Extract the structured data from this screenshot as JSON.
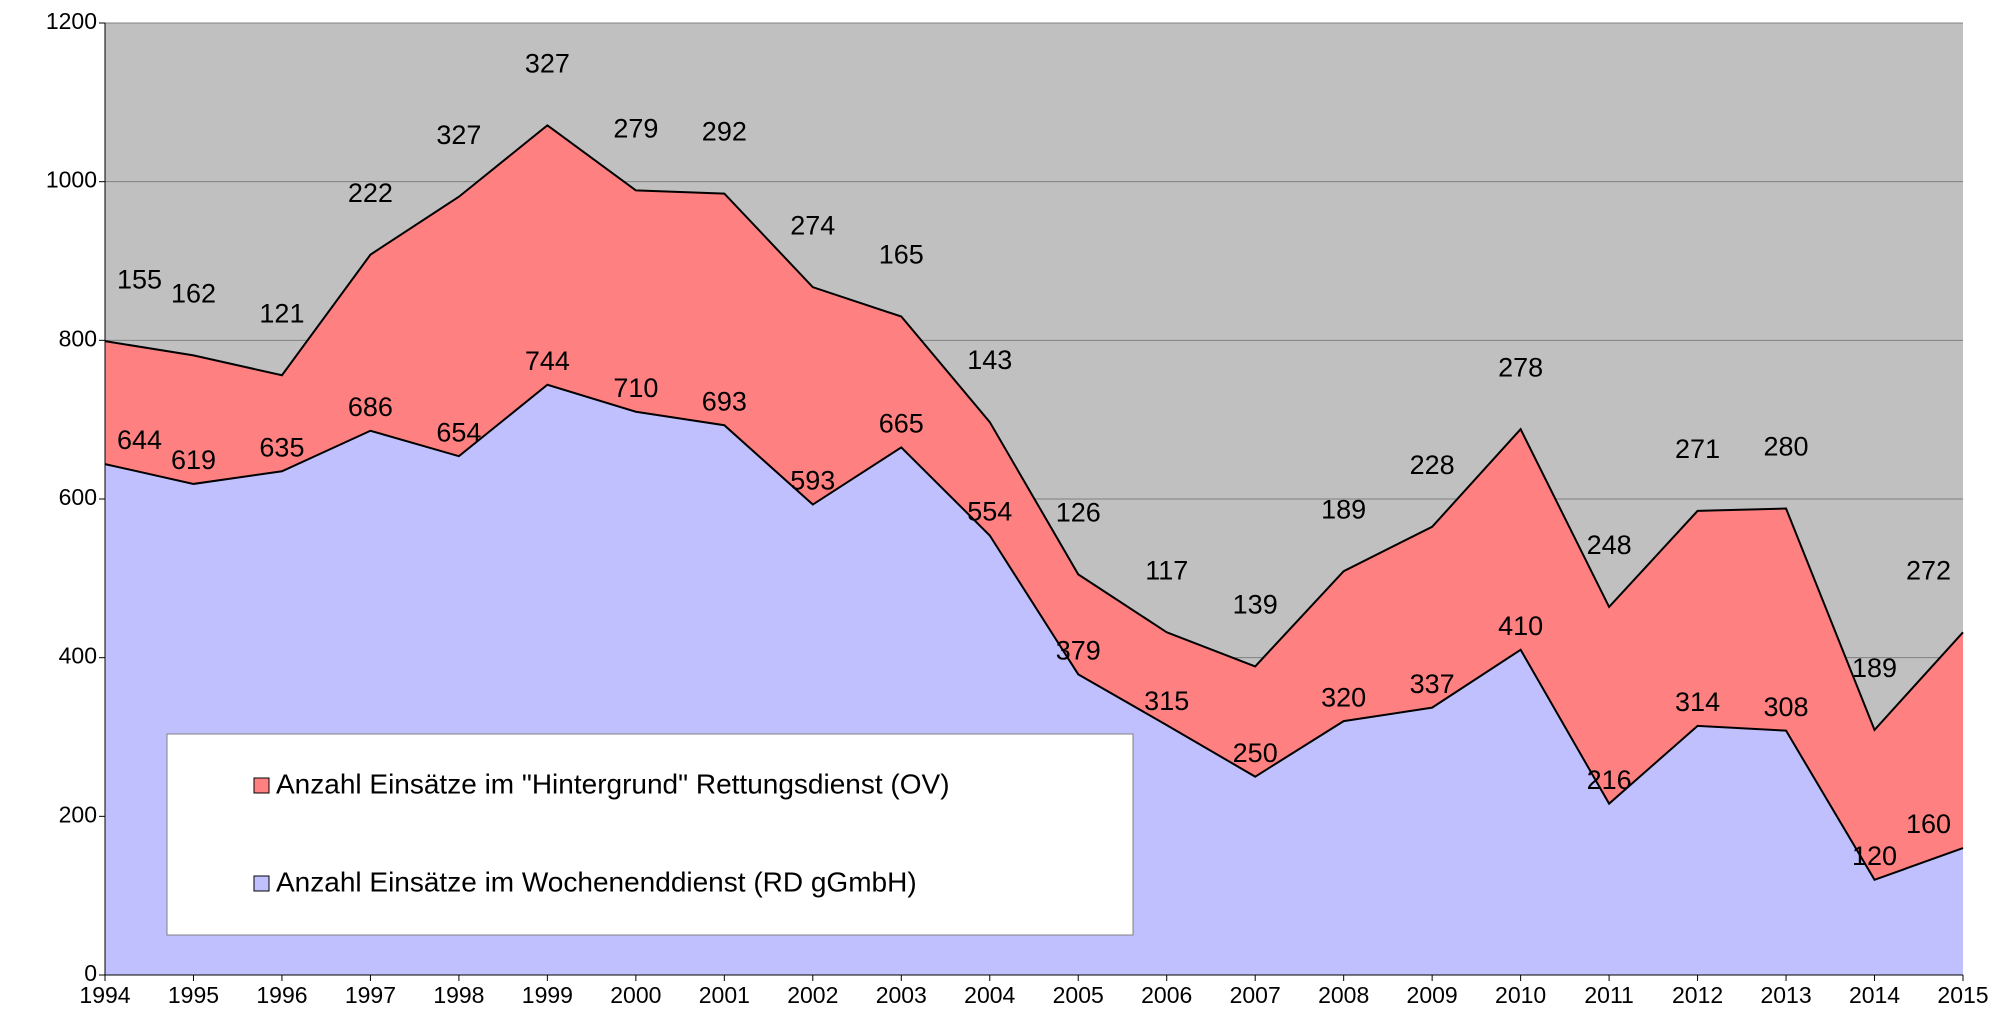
{
  "chart_data": {
    "type": "stacked_area",
    "categories": [
      "1994",
      "1995",
      "1996",
      "1997",
      "1998",
      "1999",
      "2000",
      "2001",
      "2002",
      "2003",
      "2004",
      "2005",
      "2006",
      "2007",
      "2008",
      "2009",
      "2010",
      "2011",
      "2012",
      "2013",
      "2014",
      "2015"
    ],
    "series": [
      {
        "name": "Anzahl Einsätze im Wochenenddienst (RD gGmbH)",
        "color": "#c0c0ff",
        "values": [
          644,
          619,
          635,
          686,
          654,
          744,
          710,
          693,
          593,
          665,
          554,
          379,
          315,
          250,
          320,
          337,
          410,
          216,
          314,
          308,
          120,
          160
        ]
      },
      {
        "name": "Anzahl Einsätze im \"Hintergrund\" Rettungsdienst (OV)",
        "color": "#ff8080",
        "values": [
          155,
          162,
          121,
          222,
          327,
          327,
          279,
          292,
          274,
          165,
          143,
          126,
          117,
          139,
          189,
          228,
          278,
          248,
          271,
          280,
          189,
          272
        ]
      }
    ],
    "ylim": [
      0,
      1200
    ],
    "yticks": [
      0,
      200,
      400,
      600,
      800,
      1000,
      1200
    ],
    "grid": true,
    "plot_background": "#c0c0c0"
  }
}
